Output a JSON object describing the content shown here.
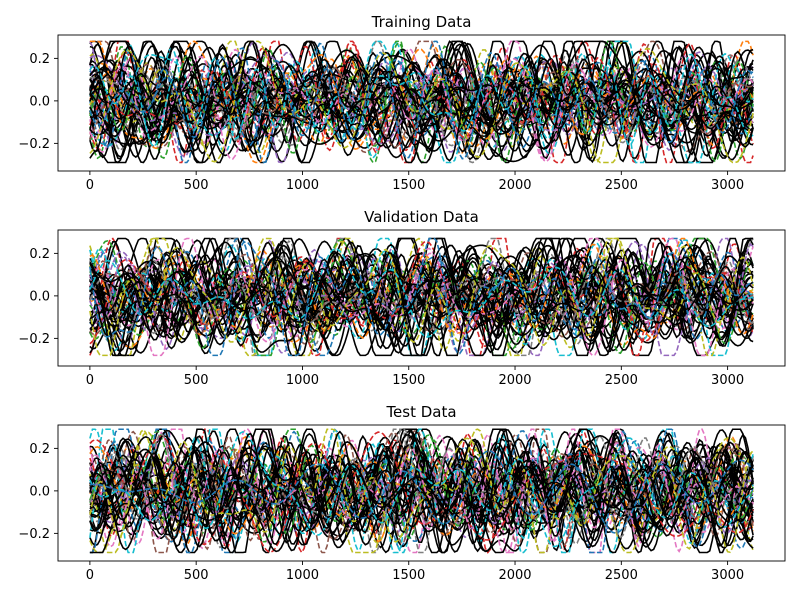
{
  "figure": {
    "background": "#ffffff"
  },
  "palette": [
    "#1f77b4",
    "#ff7f0e",
    "#2ca02c",
    "#d62728",
    "#9467bd",
    "#8c564b",
    "#e377c2",
    "#7f7f7f",
    "#bcbd22",
    "#17becf"
  ],
  "chart_data": [
    {
      "type": "line",
      "title": "Training Data",
      "xlabel": "",
      "ylabel": "",
      "xlim": [
        -150,
        3270
      ],
      "ylim": [
        -0.33,
        0.31
      ],
      "xticks": [
        0,
        500,
        1000,
        1500,
        2000,
        2500,
        3000
      ],
      "yticks": [
        -0.2,
        0.0,
        0.2
      ],
      "x_range": [
        0,
        3120
      ],
      "n_series": 62,
      "series_styles": {
        "solid_color": "#000000",
        "dashed": "palette"
      },
      "amplitude_range": [
        -0.29,
        0.28
      ],
      "grid": false,
      "legend": "none"
    },
    {
      "type": "line",
      "title": "Validation Data",
      "xlabel": "",
      "ylabel": "",
      "xlim": [
        -150,
        3270
      ],
      "ylim": [
        -0.33,
        0.31
      ],
      "xticks": [
        0,
        500,
        1000,
        1500,
        2000,
        2500,
        3000
      ],
      "yticks": [
        -0.2,
        0.0,
        0.2
      ],
      "x_range": [
        0,
        3120
      ],
      "n_series": 62,
      "series_styles": {
        "solid_color": "#000000",
        "dashed": "palette"
      },
      "amplitude_range": [
        -0.28,
        0.27
      ],
      "grid": false,
      "legend": "none"
    },
    {
      "type": "line",
      "title": "Test Data",
      "xlabel": "",
      "ylabel": "",
      "xlim": [
        -150,
        3270
      ],
      "ylim": [
        -0.33,
        0.31
      ],
      "xticks": [
        0,
        500,
        1000,
        1500,
        2000,
        2500,
        3000
      ],
      "yticks": [
        -0.2,
        0.0,
        0.2
      ],
      "x_range": [
        0,
        3120
      ],
      "n_series": 62,
      "series_styles": {
        "solid_color": "#000000",
        "dashed": "palette"
      },
      "amplitude_range": [
        -0.29,
        0.29
      ],
      "grid": false,
      "legend": "none"
    }
  ]
}
